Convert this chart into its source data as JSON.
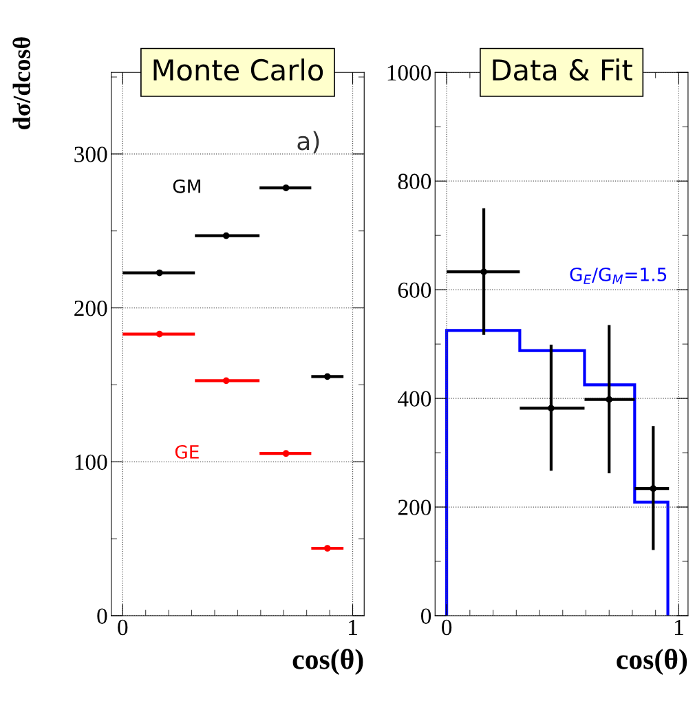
{
  "chart_data": [
    {
      "type": "scatter",
      "title": "Monte Carlo",
      "ylabel": "dσ/dcosθ",
      "xlabel": "cos(θ)",
      "annotations": [
        "a)"
      ],
      "xlim": [
        -0.05,
        1.05
      ],
      "ylim": [
        0,
        353
      ],
      "xticks": [
        0,
        1
      ],
      "yticks": [
        0,
        100,
        200,
        300
      ],
      "grid": true,
      "marker": "circle",
      "series": [
        {
          "name": "GM",
          "color": "#000000",
          "x": [
            0.16,
            0.45,
            0.71,
            0.89
          ],
          "values": [
            222.8,
            246.9,
            278,
            155.4
          ],
          "xerrors": [
            [
              0,
              0.314
            ],
            [
              0.314,
              0.595
            ],
            [
              0.595,
              0.82
            ],
            [
              0.82,
              0.96
            ]
          ]
        },
        {
          "name": "GE",
          "color": "#ff0000",
          "x": [
            0.16,
            0.45,
            0.71,
            0.89
          ],
          "values": [
            183,
            152.7,
            105.4,
            43.8
          ],
          "xerrors": [
            [
              0,
              0.314
            ],
            [
              0.314,
              0.595
            ],
            [
              0.595,
              0.82
            ],
            [
              0.82,
              0.96
            ]
          ]
        }
      ]
    },
    {
      "type": "scatter",
      "title": "Data & Fit",
      "xlabel": "cos(θ)",
      "xlim": [
        -0.05,
        1.04
      ],
      "ylim": [
        0,
        1000
      ],
      "xticks": [
        0,
        1
      ],
      "yticks": [
        0,
        200,
        400,
        600,
        800,
        1000
      ],
      "grid": true,
      "marker": "circle",
      "series": [
        {
          "type": "histogram",
          "name": "G$_{E}$/G$_{M}$=1.5",
          "color": "#0000ff",
          "bins": [
            0,
            0.315,
            0.594,
            0.81,
            0.953
          ],
          "values": [
            525,
            488,
            425,
            209
          ]
        },
        {
          "color": "#000000",
          "x": [
            0.16,
            0.45,
            0.7,
            0.89
          ],
          "values": [
            633,
            382,
            398,
            234
          ],
          "errors": [
            [
              517,
              750
            ],
            [
              267,
              499
            ],
            [
              262,
              535
            ],
            [
              121,
              349
            ]
          ],
          "xerrors": [
            [
              0,
              0.315
            ],
            [
              0.315,
              0.594
            ],
            [
              0.594,
              0.81
            ],
            [
              0.81,
              0.958
            ]
          ]
        }
      ]
    }
  ]
}
